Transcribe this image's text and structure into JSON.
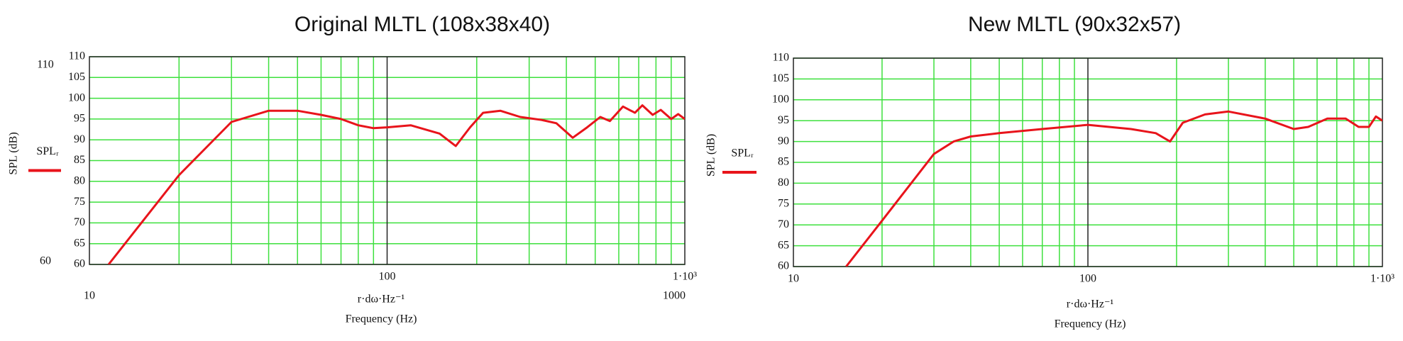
{
  "chart_data": [
    {
      "type": "line",
      "title": "Original MLTL (108x38x40)",
      "x_label": "r·dω·Hz⁻¹",
      "x_label_2": "Frequency (Hz)",
      "y_label": "SPL (dB)",
      "xscale": "log",
      "grid": true,
      "xlim": [
        10,
        1000
      ],
      "ylim": [
        60,
        110
      ],
      "xticks": [
        100,
        {
          "value": 1000,
          "label": "1·10³"
        }
      ],
      "yticks": [
        60,
        65,
        70,
        75,
        80,
        85,
        90,
        95,
        100,
        105,
        110
      ],
      "x": [
        11.6,
        20,
        30,
        40,
        50,
        60,
        70,
        80,
        90,
        100,
        120,
        150,
        170,
        190,
        210,
        240,
        280,
        330,
        370,
        420,
        470,
        520,
        560,
        620,
        680,
        720,
        780,
        830,
        900,
        950,
        1000
      ],
      "series": [
        {
          "name": "SPLᵣ",
          "color": "#e8141b",
          "values": [
            60,
            81.5,
            94.3,
            97,
            97,
            96,
            95,
            93.5,
            92.8,
            93,
            93.5,
            91.5,
            88.5,
            93,
            96.5,
            97,
            95.5,
            94.8,
            94,
            90.5,
            93,
            95.5,
            94.5,
            98,
            96.5,
            98.3,
            96,
            97.2,
            95,
            96.2,
            95
          ]
        }
      ]
    },
    {
      "type": "line",
      "title": "New MLTL (90x32x57)",
      "x_label": "r·dω·Hz⁻¹",
      "x_label_2": "Frequency (Hz)",
      "y_label": "SPL (dB)",
      "xscale": "log",
      "grid": true,
      "xlim": [
        10,
        1000
      ],
      "ylim": [
        60,
        110
      ],
      "xticks": [
        10,
        100,
        {
          "value": 1000,
          "label": "1·10³"
        }
      ],
      "yticks": [
        60,
        65,
        70,
        75,
        80,
        85,
        90,
        95,
        100,
        105,
        110
      ],
      "x": [
        15.1,
        20,
        30,
        35,
        40,
        50,
        70,
        100,
        140,
        170,
        190,
        210,
        250,
        300,
        400,
        500,
        560,
        650,
        750,
        830,
        900,
        950,
        1000
      ],
      "series": [
        {
          "name": "SPLᵣ",
          "color": "#e8141b",
          "values": [
            60,
            71,
            87,
            90,
            91.2,
            92,
            93,
            94,
            93,
            92,
            90,
            94.5,
            96.5,
            97.2,
            95.5,
            93,
            93.5,
            95.5,
            95.5,
            93.5,
            93.5,
            96,
            95
          ]
        }
      ]
    }
  ]
}
